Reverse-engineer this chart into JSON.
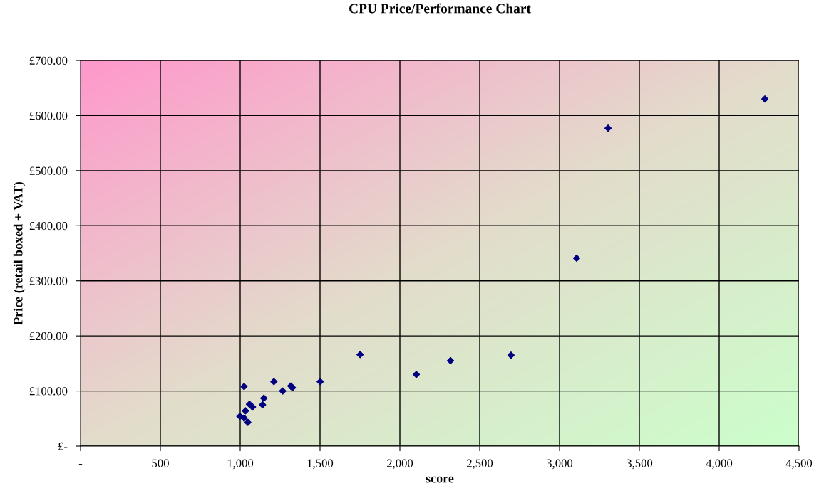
{
  "chart_data": {
    "type": "scatter",
    "title": "CPU Price/Performance Chart",
    "xlabel": "score",
    "ylabel": "Price (retail boxed + VAT)",
    "series": [
      {
        "color": "#000080",
        "x": [
          998,
          1024,
          1024,
          1033,
          1048,
          1058,
          1077,
          1140,
          1148,
          1211,
          1266,
          1317,
          1327,
          1501,
          1751,
          2103,
          2317,
          2696,
          3107,
          3304,
          4286
        ],
        "values": [
          54,
          51,
          108,
          64,
          43,
          76,
          71,
          75,
          87,
          117,
          100,
          109,
          106,
          117,
          166,
          130,
          155,
          165,
          341,
          577,
          630
        ]
      }
    ],
    "marker": "diamond",
    "grid": true,
    "xlim": [
      0,
      4500
    ],
    "ylim": [
      0,
      700
    ],
    "xticks": [
      {
        "value": 0,
        "label": "-"
      },
      {
        "value": 500,
        "label": "500"
      },
      {
        "value": 1000,
        "label": "1,000"
      },
      {
        "value": 1500,
        "label": "1,500"
      },
      {
        "value": 2000,
        "label": "2,000"
      },
      {
        "value": 2500,
        "label": "2,500"
      },
      {
        "value": 3000,
        "label": "3,000"
      },
      {
        "value": 3500,
        "label": "3,500"
      },
      {
        "value": 4000,
        "label": "4,000"
      },
      {
        "value": 4500,
        "label": "4,500"
      }
    ],
    "yticks": [
      {
        "value": 0,
        "label": "£-"
      },
      {
        "value": 100,
        "label": "£100.00"
      },
      {
        "value": 200,
        "label": "£200.00"
      },
      {
        "value": 300,
        "label": "£300.00"
      },
      {
        "value": 400,
        "label": "£400.00"
      },
      {
        "value": 500,
        "label": "£500.00"
      },
      {
        "value": 600,
        "label": "£600.00"
      },
      {
        "value": 700,
        "label": "£700.00"
      }
    ]
  }
}
